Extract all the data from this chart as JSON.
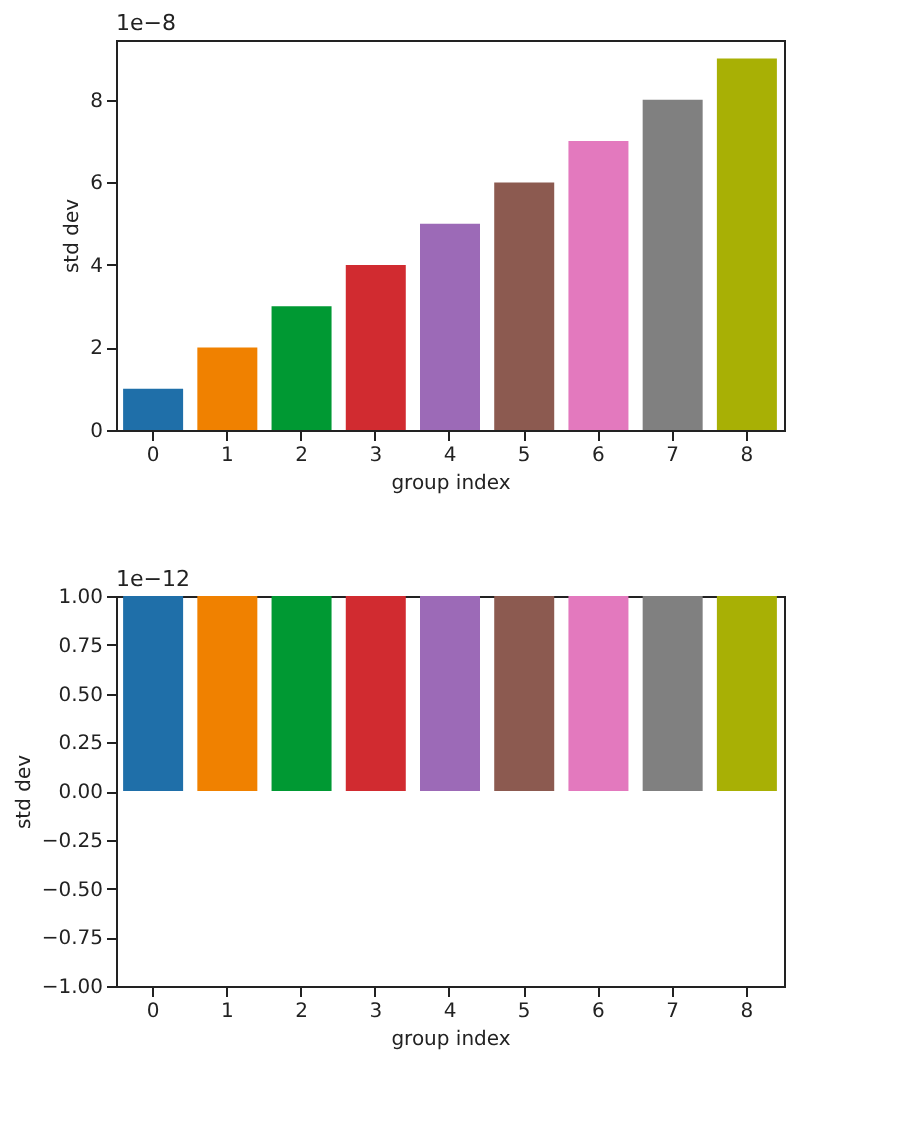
{
  "chart_data": [
    {
      "type": "bar",
      "categories": [
        "0",
        "1",
        "2",
        "3",
        "4",
        "5",
        "6",
        "7",
        "8"
      ],
      "values": [
        1,
        2,
        3,
        4,
        5,
        6,
        7,
        8,
        9
      ],
      "colors": [
        "#1f6fa9",
        "#f08100",
        "#009933",
        "#d12b30",
        "#9c6ab7",
        "#8c5a50",
        "#e379be",
        "#808080",
        "#a8b005"
      ],
      "xlabel": "group index",
      "ylabel": "std dev",
      "ylim": [
        0,
        9.45
      ],
      "yticks": [
        0,
        2,
        4,
        6,
        8
      ],
      "grid": false,
      "annotations": [
        "1e−8"
      ]
    },
    {
      "type": "bar",
      "categories": [
        "0",
        "1",
        "2",
        "3",
        "4",
        "5",
        "6",
        "7",
        "8"
      ],
      "values": [
        1,
        1,
        1,
        1,
        1,
        1,
        1,
        1,
        1
      ],
      "colors": [
        "#1f6fa9",
        "#f08100",
        "#009933",
        "#d12b30",
        "#9c6ab7",
        "#8c5a50",
        "#e379be",
        "#808080",
        "#a8b005"
      ],
      "xlabel": "group index",
      "ylabel": "std dev",
      "ylim": [
        -1,
        1
      ],
      "yticks": [
        {
          "value": -1,
          "label": "−1.00"
        },
        {
          "value": -0.75,
          "label": "−0.75"
        },
        {
          "value": -0.5,
          "label": "−0.50"
        },
        {
          "value": -0.25,
          "label": "−0.25"
        },
        {
          "value": 0,
          "label": "0.00"
        },
        {
          "value": 0.25,
          "label": "0.25"
        },
        {
          "value": 0.5,
          "label": "0.50"
        },
        {
          "value": 0.75,
          "label": "0.75"
        },
        {
          "value": 1,
          "label": "1.00"
        }
      ],
      "grid": false,
      "annotations": [
        "1e−12"
      ]
    }
  ]
}
